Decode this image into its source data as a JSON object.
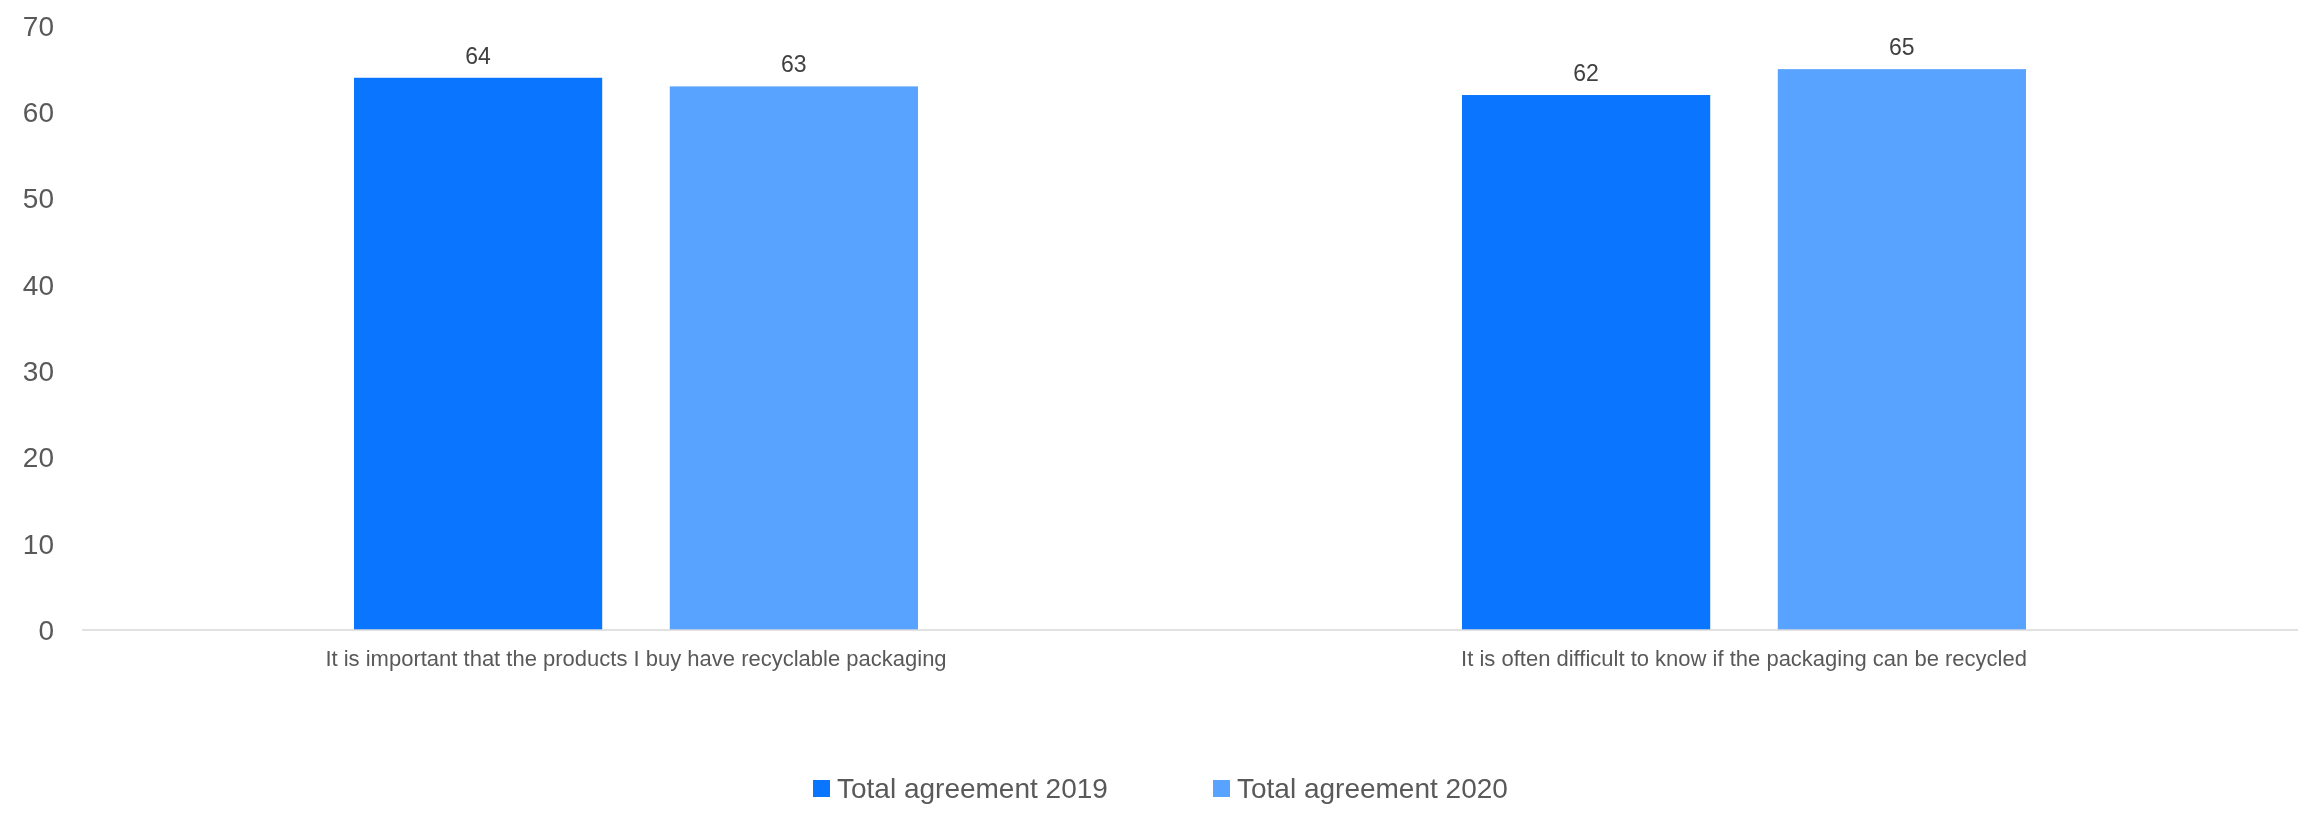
{
  "chart_data": {
    "type": "bar",
    "categories": [
      "It is important that the products I buy have recyclable packaging",
      "It is often difficult to know if the packaging can be recycled"
    ],
    "series": [
      {
        "name": "Total agreement 2019",
        "color": "#0a75ff",
        "values": [
          64,
          62
        ]
      },
      {
        "name": "Total agreement 2020",
        "color": "#57a3ff",
        "values": [
          63,
          65
        ]
      }
    ],
    "ylim": [
      0,
      70
    ],
    "yticks": [
      0,
      10,
      20,
      30,
      40,
      50,
      60,
      70
    ],
    "grid": false,
    "legend": "bottom",
    "data_labels": true
  }
}
